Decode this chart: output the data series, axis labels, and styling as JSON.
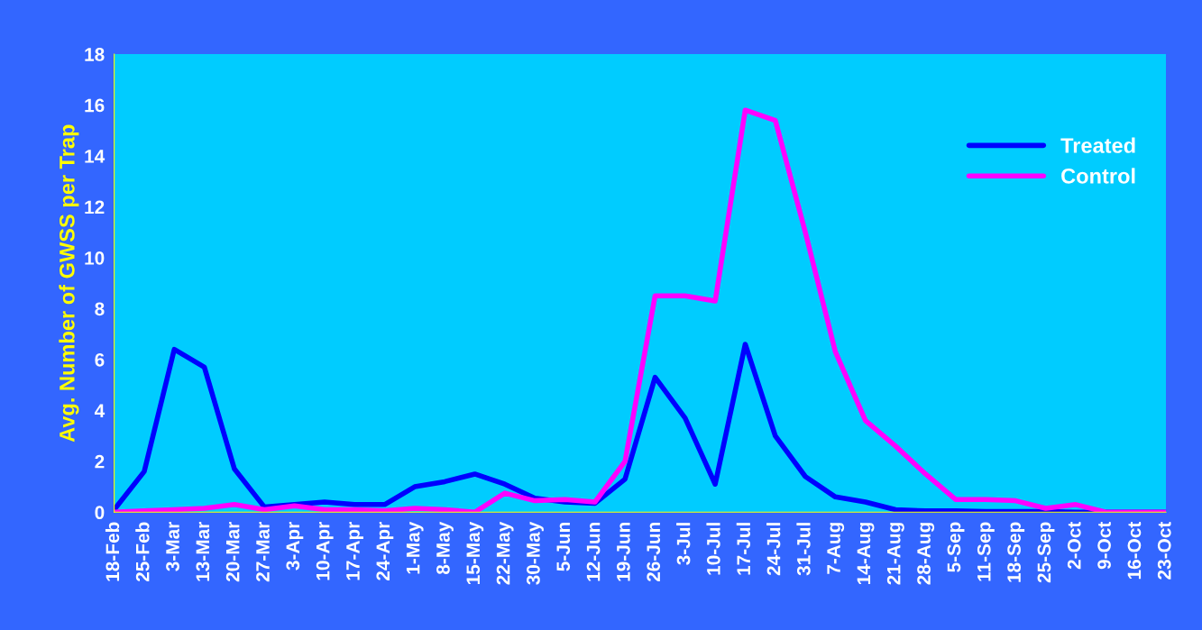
{
  "chart_data": {
    "type": "line",
    "ylabel": "Avg. Number of GWSS per Trap",
    "categories": [
      "18-Feb",
      "25-Feb",
      "3-Mar",
      "13-Mar",
      "20-Mar",
      "27-Mar",
      "3-Apr",
      "10-Apr",
      "17-Apr",
      "24-Apr",
      "1-May",
      "8-May",
      "15-May",
      "22-May",
      "30-May",
      "5-Jun",
      "12-Jun",
      "19-Jun",
      "26-Jun",
      "3-Jul",
      "10-Jul",
      "17-Jul",
      "24-Jul",
      "31-Jul",
      "7-Aug",
      "14-Aug",
      "21-Aug",
      "28-Aug",
      "5-Sep",
      "11-Sep",
      "18-Sep",
      "25-Sep",
      "2-Oct",
      "9-Oct",
      "16-Oct",
      "23-Oct"
    ],
    "series": [
      {
        "name": "Treated",
        "color": "#0000ff",
        "values": [
          0.1,
          1.6,
          6.4,
          5.7,
          1.7,
          0.2,
          0.3,
          0.4,
          0.3,
          0.3,
          1.0,
          1.2,
          1.5,
          1.1,
          0.55,
          0.4,
          0.35,
          1.3,
          5.3,
          3.7,
          1.1,
          6.6,
          3.0,
          1.4,
          0.6,
          0.4,
          0.1,
          0.05,
          0.05,
          0.03,
          0.03,
          0.03,
          0.0,
          0.0,
          0.0,
          0.0
        ]
      },
      {
        "name": "Control",
        "color": "#ff00ff",
        "values": [
          0.0,
          0.05,
          0.1,
          0.15,
          0.3,
          0.1,
          0.25,
          0.1,
          0.1,
          0.05,
          0.15,
          0.1,
          0.0,
          0.75,
          0.45,
          0.5,
          0.4,
          2.0,
          8.5,
          8.5,
          8.3,
          15.8,
          15.4,
          11.0,
          6.3,
          3.6,
          2.6,
          1.5,
          0.5,
          0.5,
          0.45,
          0.15,
          0.3,
          0.0,
          0.0,
          0.0
        ]
      }
    ],
    "ylim": [
      0,
      18
    ],
    "yticks": [
      0,
      2,
      4,
      6,
      8,
      10,
      12,
      14,
      16,
      18
    ],
    "grid": false,
    "legend": "top right",
    "marker": "none",
    "line_style": "solid"
  }
}
